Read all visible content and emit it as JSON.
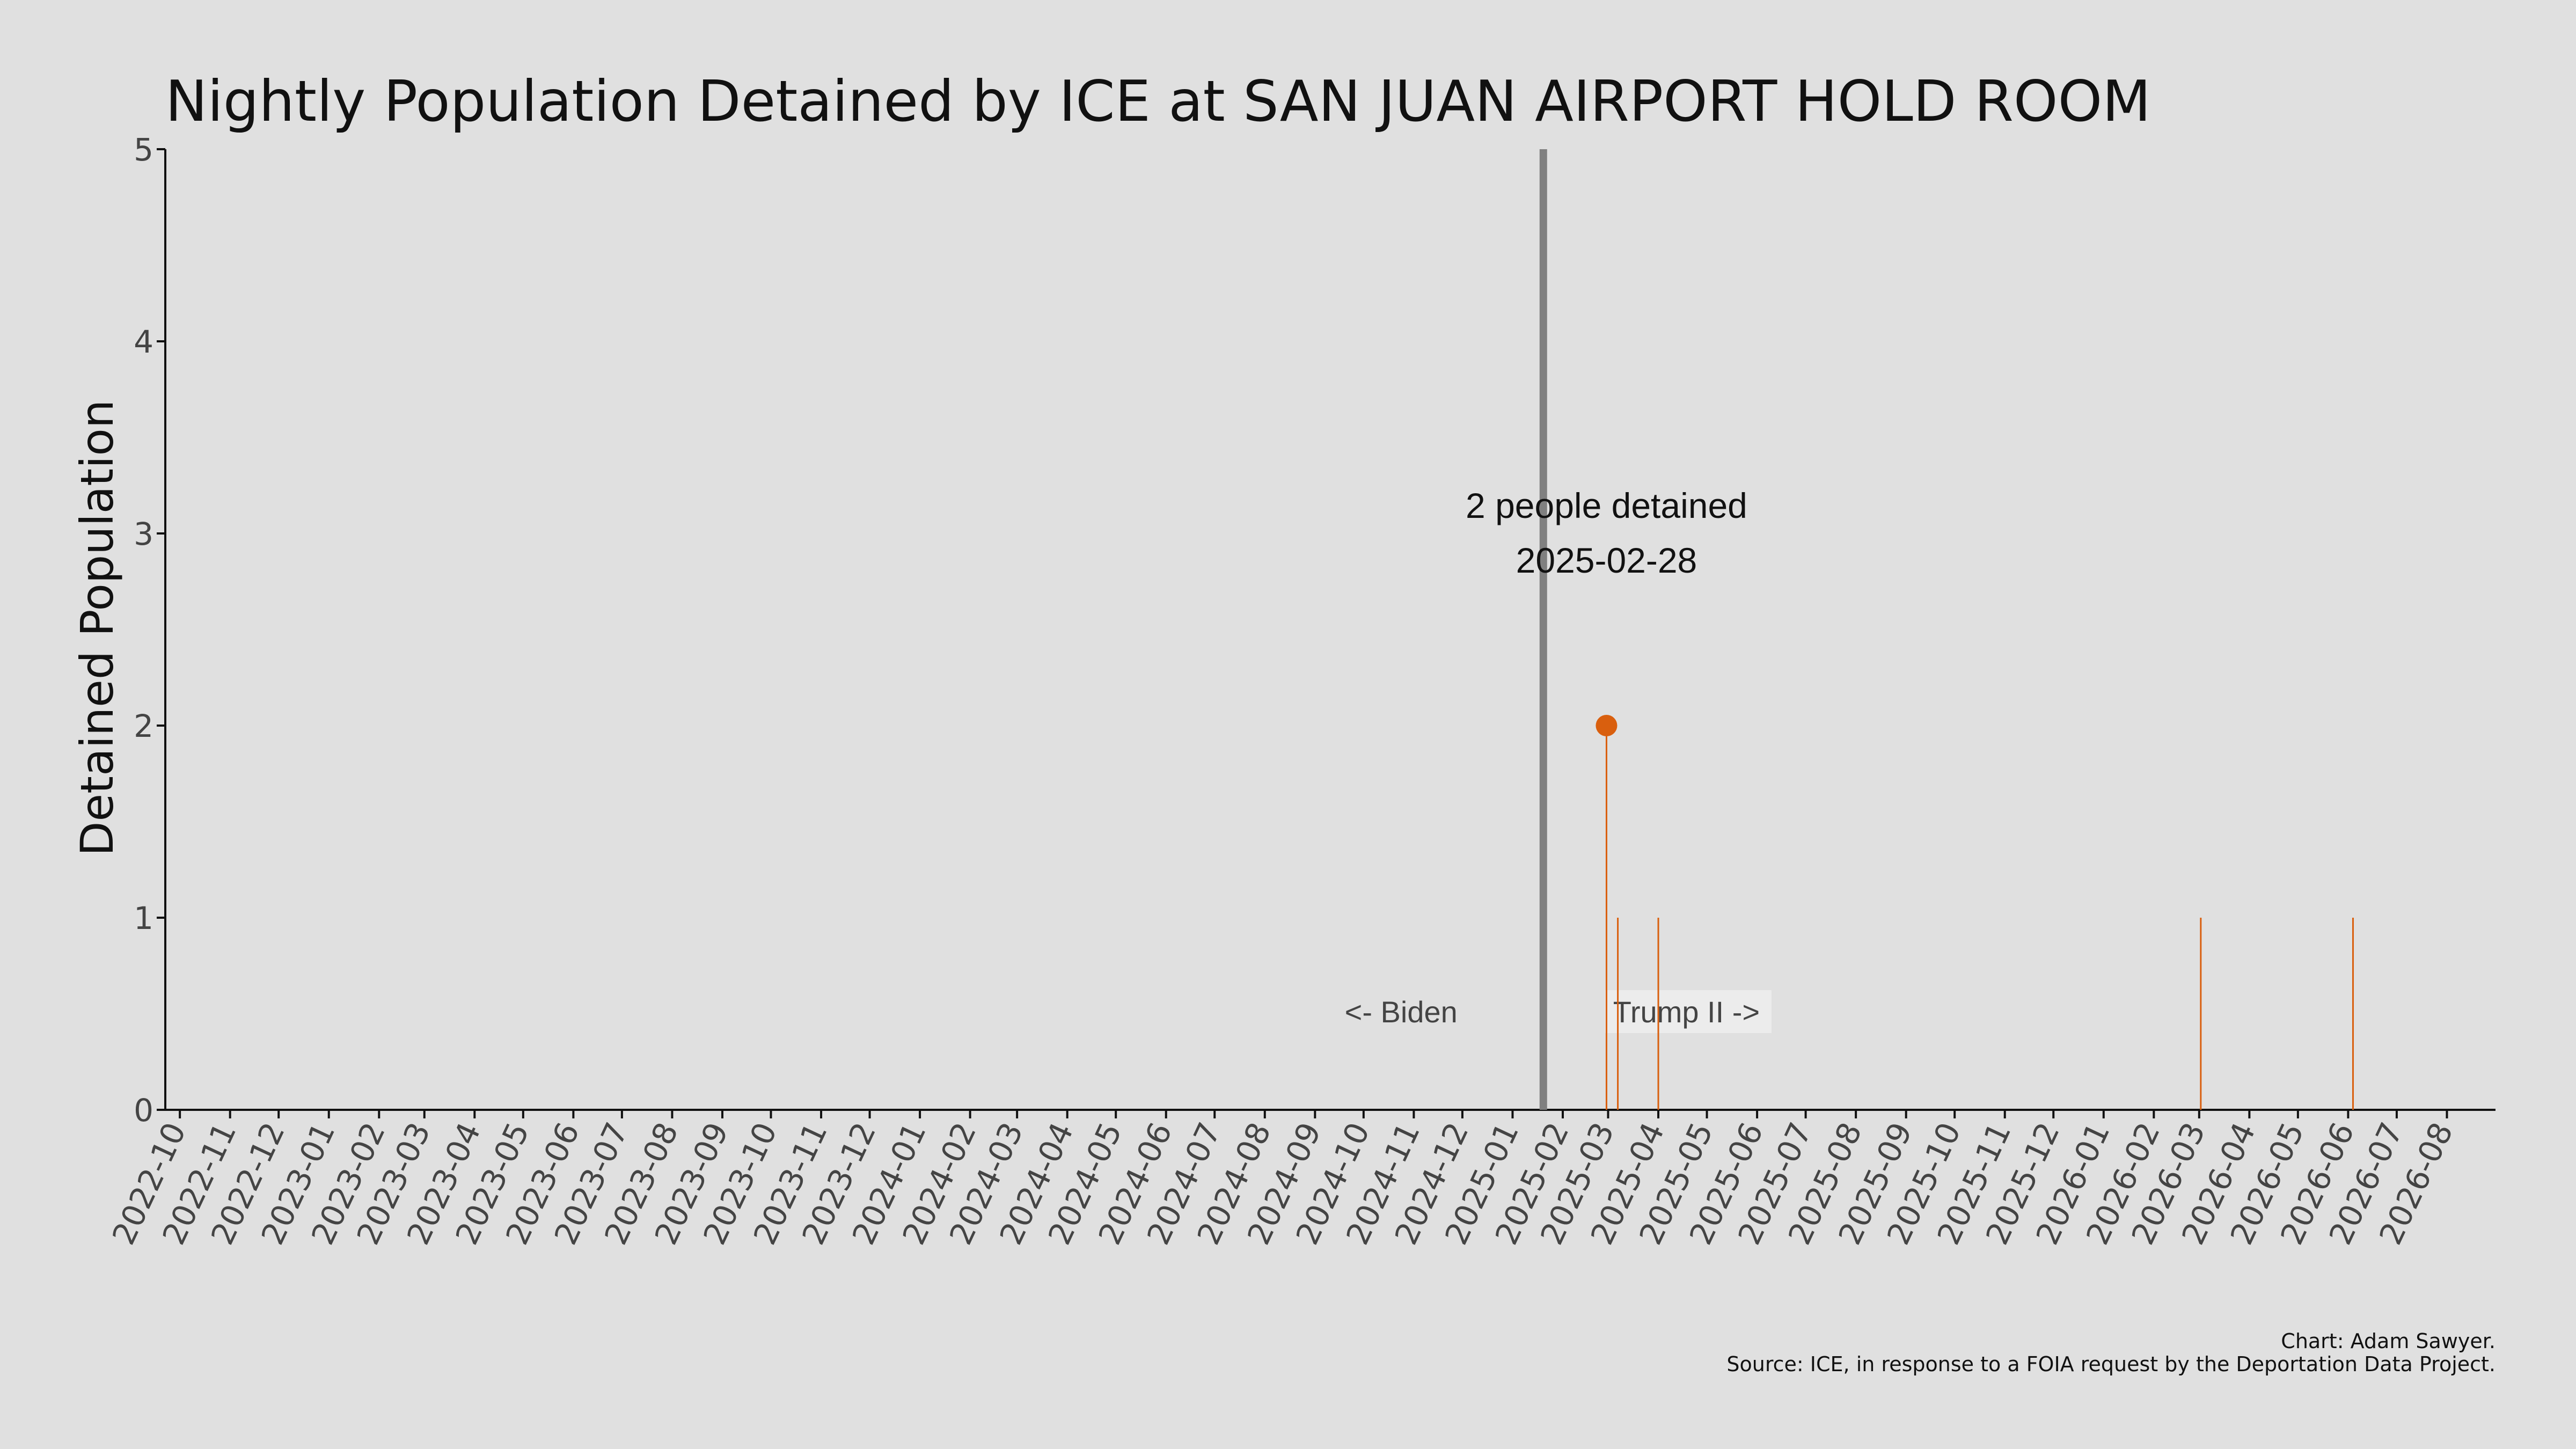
{
  "chart_data": {
    "type": "line",
    "title": "Nightly Population Detained by ICE at SAN JUAN AIRPORT HOLD ROOM",
    "xlabel": "",
    "ylabel": "Detained Population",
    "ylim": [
      0,
      5
    ],
    "yticks": [
      "0",
      "1",
      "2",
      "3",
      "4",
      "5"
    ],
    "xlim": [
      "2022-09-22",
      "2026-08-31"
    ],
    "xticks": [
      "2022-10",
      "2022-11",
      "2022-12",
      "2023-01",
      "2023-02",
      "2023-03",
      "2023-04",
      "2023-05",
      "2023-06",
      "2023-07",
      "2023-08",
      "2023-09",
      "2023-10",
      "2023-11",
      "2023-12",
      "2024-01",
      "2024-02",
      "2024-03",
      "2024-04",
      "2024-05",
      "2024-06",
      "2024-07",
      "2024-08",
      "2024-09",
      "2024-10",
      "2024-11",
      "2024-12",
      "2025-01",
      "2025-02",
      "2025-03",
      "2025-04",
      "2025-05",
      "2025-06",
      "2025-07",
      "2025-08",
      "2025-09",
      "2025-10",
      "2025-11",
      "2025-12",
      "2026-01",
      "2026-02",
      "2026-03",
      "2026-04",
      "2026-05",
      "2026-06",
      "2026-07",
      "2026-08"
    ],
    "series": [
      {
        "color": "#d95f0e",
        "points": [
          {
            "x": "2025-02-28",
            "y": 2
          },
          {
            "x": "2025-03-07",
            "y": 1
          },
          {
            "x": "2025-04-01",
            "y": 1
          },
          {
            "x": "2026-03-02",
            "y": 1
          },
          {
            "x": "2026-06-04",
            "y": 1
          }
        ]
      }
    ],
    "highlight": {
      "x": "2025-02-28",
      "y": 2,
      "line1": "2 people detained",
      "line2": "2025-02-28"
    },
    "divider": {
      "x": "2025-01-20",
      "color": "#808080"
    },
    "era_left": "<- Biden",
    "era_right": "Trump II ->",
    "grid": false
  },
  "credit": "Chart: Adam Sawyer.",
  "source": "Source: ICE, in response to a FOIA request by the Deportation Data Project."
}
